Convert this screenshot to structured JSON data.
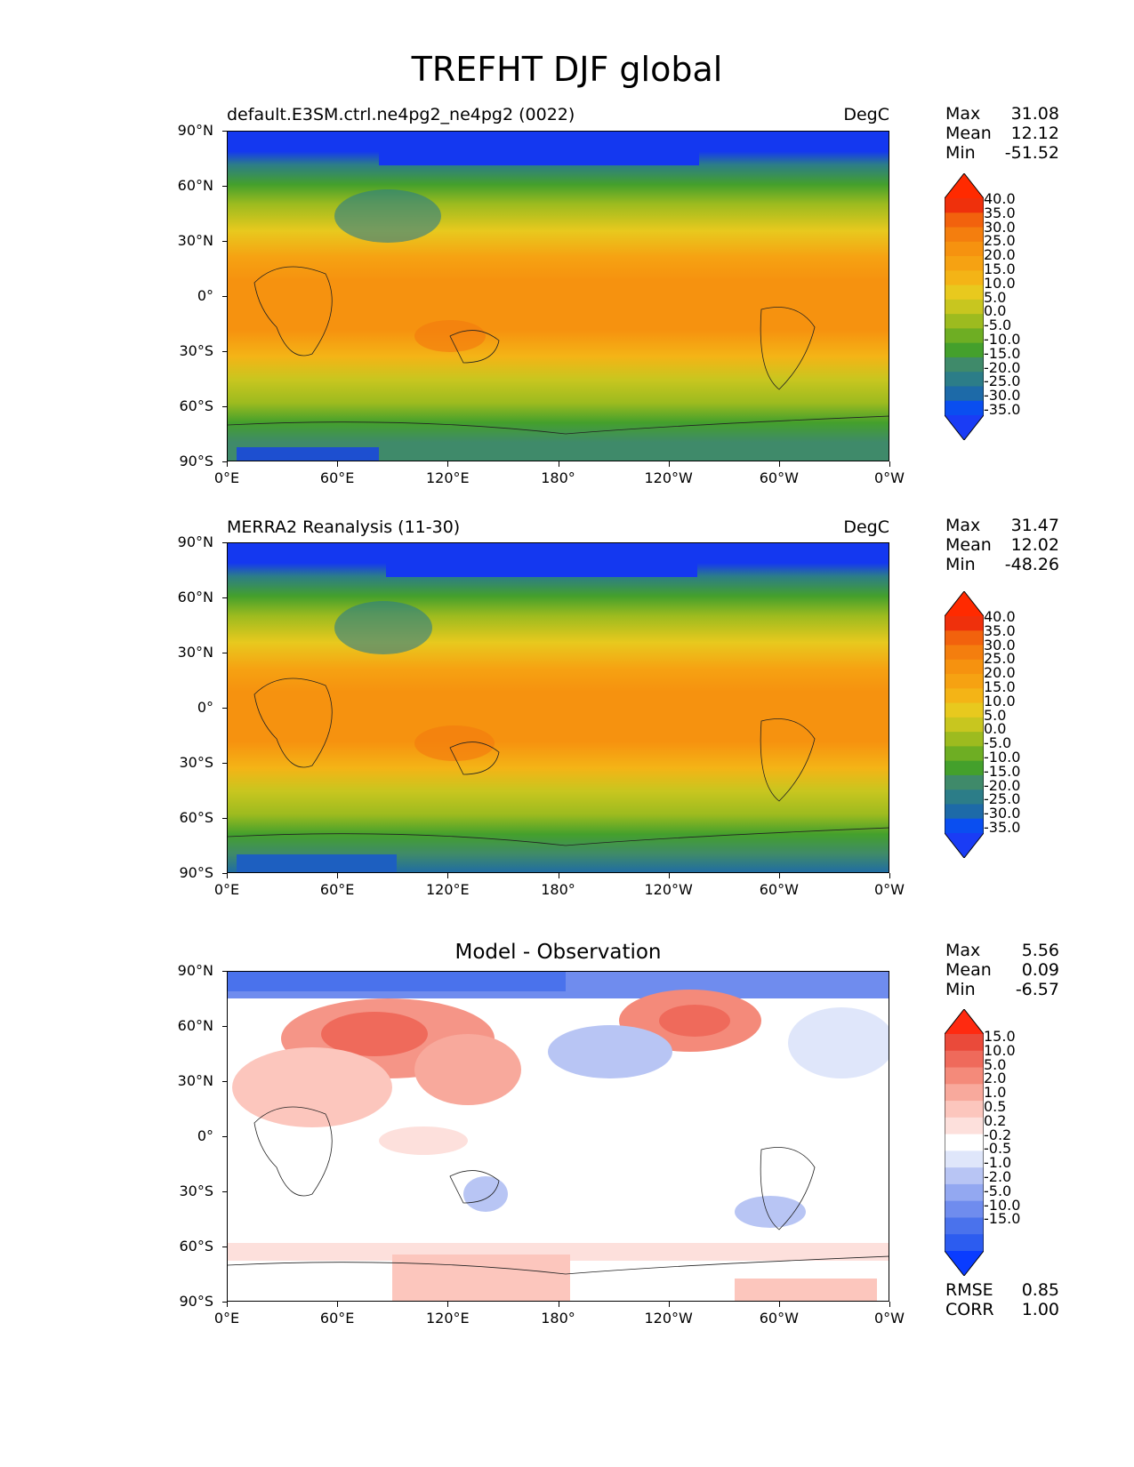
{
  "figure_title": "TREFHT DJF global",
  "axes": {
    "lat_ticks": [
      "90°N",
      "60°N",
      "30°N",
      "0°",
      "30°S",
      "60°S",
      "90°S"
    ],
    "lon_ticks": [
      "0°E",
      "60°E",
      "120°E",
      "180°",
      "120°W",
      "60°W",
      "0°W"
    ]
  },
  "panels": [
    {
      "title_left": "default.E3SM.ctrl.ne4pg2_ne4pg2 (0022)",
      "title_right": "DegC",
      "title_center": "",
      "stats": [
        {
          "label": "Max",
          "value": "31.08"
        },
        {
          "label": "Mean",
          "value": "12.12"
        },
        {
          "label": "Min",
          "value": "-51.52"
        }
      ],
      "colorbar_levels": [
        "40.0",
        "35.0",
        "30.0",
        "25.0",
        "20.0",
        "15.0",
        "10.0",
        "5.0",
        "0.0",
        "-5.0",
        "-10.0",
        "-15.0",
        "-20.0",
        "-25.0",
        "-30.0",
        "-35.0"
      ]
    },
    {
      "title_left": "MERRA2 Reanalysis (11-30)",
      "title_right": "DegC",
      "title_center": "",
      "stats": [
        {
          "label": "Max",
          "value": "31.47"
        },
        {
          "label": "Mean",
          "value": "12.02"
        },
        {
          "label": "Min",
          "value": "-48.26"
        }
      ],
      "colorbar_levels": [
        "40.0",
        "35.0",
        "30.0",
        "25.0",
        "20.0",
        "15.0",
        "10.0",
        "5.0",
        "0.0",
        "-5.0",
        "-10.0",
        "-15.0",
        "-20.0",
        "-25.0",
        "-30.0",
        "-35.0"
      ]
    },
    {
      "title_left": "",
      "title_right": "",
      "title_center": "Model - Observation",
      "stats": [
        {
          "label": "Max",
          "value": "5.56"
        },
        {
          "label": "Mean",
          "value": "0.09"
        },
        {
          "label": "Min",
          "value": "-6.57"
        }
      ],
      "colorbar_levels": [
        "15.0",
        "10.0",
        "5.0",
        "2.0",
        "1.0",
        "0.5",
        "0.2",
        "-0.2",
        "-0.5",
        "-1.0",
        "-2.0",
        "-5.0",
        "-10.0",
        "-15.0"
      ],
      "footer_stats": [
        {
          "label": "RMSE",
          "value": "0.85"
        },
        {
          "label": "CORR",
          "value": "1.00"
        }
      ]
    }
  ],
  "colors": {
    "temperature_scale": [
      "#1a3cf5",
      "#0a4ef0",
      "#1d6aa8",
      "#2c7d88",
      "#3f8a6a",
      "#44a02c",
      "#6eae23",
      "#9dbb1f",
      "#c8c61f",
      "#e8c91e",
      "#f4b416",
      "#f6a212",
      "#f6920f",
      "#f47e0e",
      "#f2620d",
      "#ef300c",
      "#ff2a00"
    ],
    "difference_scale": [
      "#0a3cff",
      "#2c5cf0",
      "#4a72ec",
      "#6f8cee",
      "#93a8f1",
      "#b8c5f4",
      "#dfe6fa",
      "#ffffff",
      "#fde0dc",
      "#fcc6bd",
      "#f8a99c",
      "#f48a7a",
      "#ef6a5b",
      "#ea4a3a",
      "#ff2a10"
    ]
  }
}
